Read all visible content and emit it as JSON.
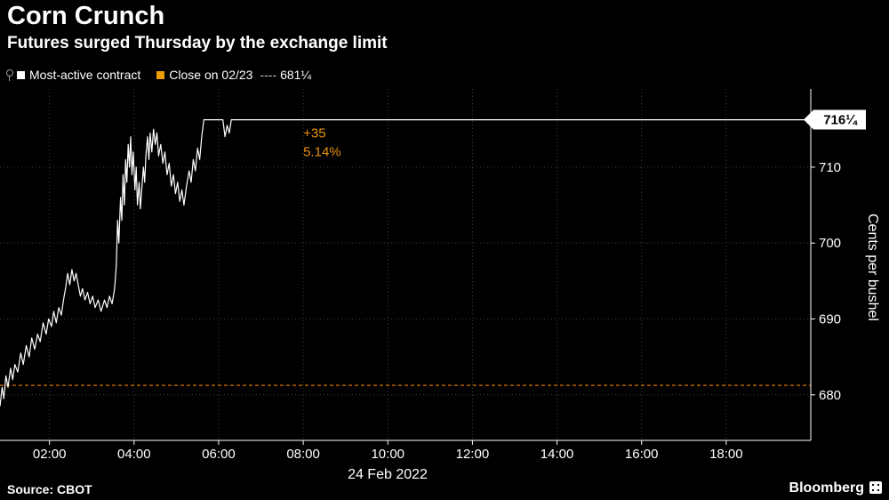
{
  "header": {
    "title": "Corn Crunch",
    "subtitle": "Futures surged Thursday by the exchange limit"
  },
  "legend": {
    "series_label": "Most-active contract",
    "close_label": "Close on 02/23",
    "close_dashes": "----",
    "close_value": "681¼"
  },
  "axes": {
    "date_label": "24 Feb 2022",
    "y_axis_label": "Cents per bushel"
  },
  "footer": {
    "source": "Source: CBOT",
    "brand": "Bloomberg"
  },
  "chart_data": {
    "type": "line",
    "title": "Corn Crunch",
    "subtitle": "Futures surged Thursday by the exchange limit",
    "xlabel": "24 Feb 2022",
    "ylabel": "Cents per bushel",
    "xlim": [
      0.83,
      20
    ],
    "ylim": [
      674,
      720.3
    ],
    "grid": true,
    "grid_color": "#3f3f3f",
    "axis_color": "#ffffff",
    "background": "#000000",
    "x_ticks": {
      "values": [
        2,
        4,
        6,
        8,
        10,
        12,
        14,
        16,
        18
      ],
      "labels": [
        "02:00",
        "04:00",
        "06:00",
        "08:00",
        "10:00",
        "12:00",
        "14:00",
        "16:00",
        "18:00"
      ]
    },
    "y_ticks": {
      "values": [
        680,
        690,
        700,
        710
      ],
      "labels": [
        "680",
        "690",
        "700",
        "710"
      ]
    },
    "series": [
      {
        "name": "Most-active contract",
        "color": "#ffffff",
        "points": [
          [
            0.83,
            678.5
          ],
          [
            0.88,
            681
          ],
          [
            0.92,
            679.5
          ],
          [
            0.97,
            682.5
          ],
          [
            1.02,
            681
          ],
          [
            1.08,
            683.5
          ],
          [
            1.13,
            682
          ],
          [
            1.18,
            684
          ],
          [
            1.25,
            683
          ],
          [
            1.32,
            685.5
          ],
          [
            1.38,
            684
          ],
          [
            1.45,
            686.5
          ],
          [
            1.52,
            685
          ],
          [
            1.58,
            687.5
          ],
          [
            1.65,
            686
          ],
          [
            1.72,
            688
          ],
          [
            1.78,
            687
          ],
          [
            1.85,
            689.5
          ],
          [
            1.92,
            688
          ],
          [
            1.98,
            690
          ],
          [
            2.05,
            689
          ],
          [
            2.1,
            691
          ],
          [
            2.16,
            689.5
          ],
          [
            2.22,
            691.5
          ],
          [
            2.28,
            690.5
          ],
          [
            2.33,
            692.5
          ],
          [
            2.38,
            694
          ],
          [
            2.43,
            696
          ],
          [
            2.48,
            694.5
          ],
          [
            2.53,
            696.5
          ],
          [
            2.58,
            695
          ],
          [
            2.63,
            696
          ],
          [
            2.68,
            694.5
          ],
          [
            2.73,
            693
          ],
          [
            2.78,
            694
          ],
          [
            2.84,
            692.5
          ],
          [
            2.9,
            693.5
          ],
          [
            2.96,
            692
          ],
          [
            3.02,
            693
          ],
          [
            3.08,
            691.5
          ],
          [
            3.15,
            692.5
          ],
          [
            3.22,
            691
          ],
          [
            3.3,
            692.5
          ],
          [
            3.36,
            691.5
          ],
          [
            3.42,
            693
          ],
          [
            3.48,
            692
          ],
          [
            3.54,
            694
          ],
          [
            3.58,
            697
          ],
          [
            3.61,
            703
          ],
          [
            3.64,
            700
          ],
          [
            3.68,
            706
          ],
          [
            3.71,
            703
          ],
          [
            3.74,
            709
          ],
          [
            3.77,
            705
          ],
          [
            3.8,
            711
          ],
          [
            3.83,
            708
          ],
          [
            3.86,
            713
          ],
          [
            3.89,
            710
          ],
          [
            3.92,
            714
          ],
          [
            3.95,
            709
          ],
          [
            3.98,
            712
          ],
          [
            4.02,
            707
          ],
          [
            4.05,
            710
          ],
          [
            4.08,
            705
          ],
          [
            4.12,
            708
          ],
          [
            4.15,
            704.5
          ],
          [
            4.18,
            707
          ],
          [
            4.22,
            710
          ],
          [
            4.25,
            708
          ],
          [
            4.28,
            711.5
          ],
          [
            4.32,
            714
          ],
          [
            4.35,
            711
          ],
          [
            4.38,
            714.5
          ],
          [
            4.42,
            712
          ],
          [
            4.46,
            715
          ],
          [
            4.5,
            713
          ],
          [
            4.54,
            714.5
          ],
          [
            4.58,
            711.5
          ],
          [
            4.63,
            713
          ],
          [
            4.68,
            710.5
          ],
          [
            4.73,
            712
          ],
          [
            4.78,
            709
          ],
          [
            4.83,
            710.5
          ],
          [
            4.88,
            707.5
          ],
          [
            4.93,
            709
          ],
          [
            4.98,
            706.5
          ],
          [
            5.03,
            708
          ],
          [
            5.08,
            705.5
          ],
          [
            5.13,
            707
          ],
          [
            5.18,
            705
          ],
          [
            5.24,
            707.5
          ],
          [
            5.3,
            709.5
          ],
          [
            5.35,
            708
          ],
          [
            5.4,
            711
          ],
          [
            5.45,
            709.5
          ],
          [
            5.5,
            712.5
          ],
          [
            5.55,
            711
          ],
          [
            5.6,
            714
          ],
          [
            5.65,
            716.25
          ],
          [
            6.1,
            716.25
          ],
          [
            6.15,
            714
          ],
          [
            6.2,
            715.5
          ],
          [
            6.25,
            714.5
          ],
          [
            6.3,
            716.25
          ],
          [
            20,
            716.25
          ]
        ]
      }
    ],
    "close_line": {
      "label": "Close on 02/23",
      "value": 681.25,
      "display": "681¼",
      "color": "#d47400"
    },
    "last_price": {
      "value": 716.25,
      "display": "716¼"
    },
    "annotation": {
      "x": 8.0,
      "y": 715.3,
      "lines": [
        "+35",
        "5.14%"
      ],
      "color": "#e8920a"
    },
    "legend_position": "top-left"
  }
}
